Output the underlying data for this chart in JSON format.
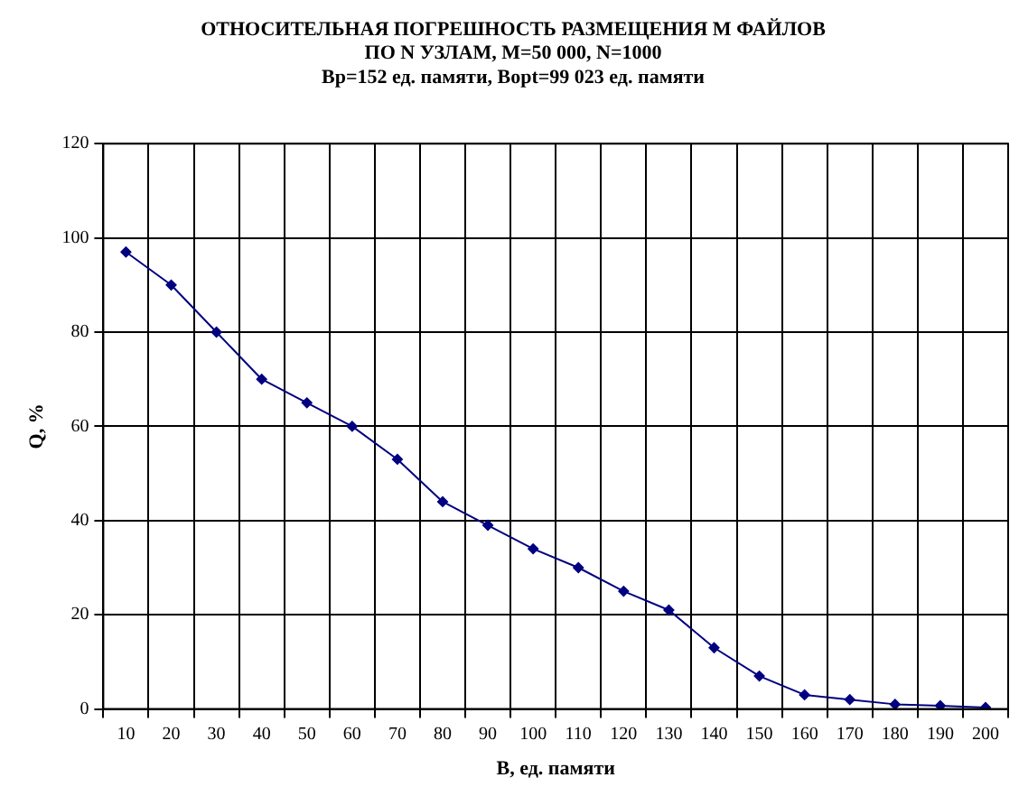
{
  "chart_data": {
    "type": "line",
    "title": "ОТНОСИТЕЛЬНАЯ ПОГРЕШНОСТЬ РАЗМЕЩЕНИЯ М ФАЙЛОВ\nПО N УЗЛАМ, M=50 000, N=1000\nBp=152 ед. памяти, Bopt=99 023 ед. памяти",
    "xlabel": "B, ед. памяти",
    "ylabel": "Q, %",
    "categories": [
      "10",
      "20",
      "30",
      "40",
      "50",
      "60",
      "70",
      "80",
      "90",
      "100",
      "110",
      "120",
      "130",
      "140",
      "150",
      "160",
      "170",
      "180",
      "190",
      "200"
    ],
    "series": [
      {
        "color": "#000080",
        "values": [
          97,
          90,
          80,
          70,
          65,
          60,
          53,
          44,
          39,
          34,
          30,
          25,
          21,
          13,
          7,
          3,
          2,
          1,
          0.7,
          0.3
        ]
      }
    ],
    "ylim": [
      0,
      120
    ],
    "yticks": [
      0,
      20,
      40,
      60,
      80,
      100,
      120
    ],
    "grid": true,
    "legend": false,
    "marker": "diamond",
    "line_style": "solid"
  }
}
